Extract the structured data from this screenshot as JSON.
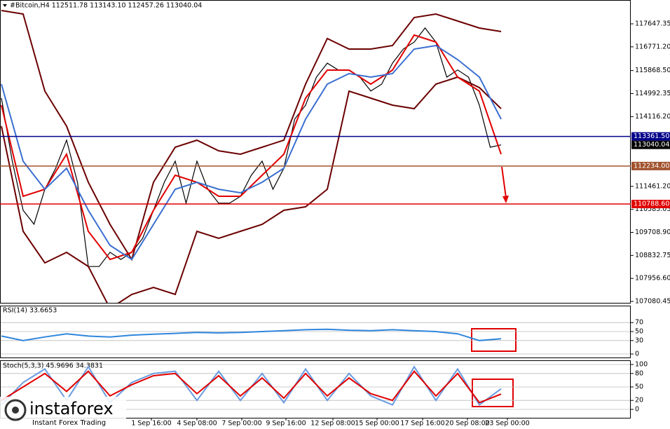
{
  "header": {
    "quote": "#Bitcoin,H4  112511.78 113143.10 112457.26 113040.04"
  },
  "watermark": {
    "brand": "instaforex",
    "tagline": "Instant Forex Trading"
  },
  "x_labels": [
    "1 Sep 16:00",
    "4 Sep 08:00",
    "7 Sep 00:00",
    "9 Sep 16:00",
    "12 Sep 08:00",
    "15 Sep 00:00",
    "17 Sep 16:00",
    "20 Sep 08:00",
    "23 Sep 00:00"
  ],
  "chart_data": [
    {
      "type": "line",
      "series": [
        {
          "color": "#000000",
          "values": [
            114820,
            112420,
            110550,
            110020,
            111350,
            112150,
            113220,
            111620,
            108410,
            108410,
            108950,
            108680,
            108950,
            109480,
            110550,
            111620,
            112420,
            110820,
            112420,
            111350,
            110820,
            110820,
            111080,
            111880,
            112420,
            111350,
            112150,
            114020,
            114550,
            115620,
            116150,
            115890,
            115890,
            115620,
            115090,
            115350,
            116150,
            116690,
            116950,
            117490,
            116950,
            115620,
            115890,
            115620,
            114550,
            112950,
            113040.04
          ]
        },
        {
          "color": "#6b0000",
          "values": [
            118154,
            118020,
            115085,
            113751,
            111616,
            110014,
            108680,
            111616,
            112950,
            113217,
            112816,
            112683,
            112950,
            113217,
            115352,
            117087,
            116686,
            116686,
            116820,
            117887,
            118020,
            117754,
            117487,
            117354
          ]
        },
        {
          "color": "#6b0000",
          "values": [
            113751,
            109748,
            108547,
            108947,
            108413,
            106812,
            107346,
            107613,
            107346,
            109748,
            109481,
            109748,
            110014,
            110548,
            110682,
            111349,
            115085,
            114818,
            114551,
            114418,
            115352,
            115619,
            115219,
            114418
          ]
        },
        {
          "color": "#e00000",
          "values": [
            114551,
            111082,
            111349,
            112683,
            109748,
            108680,
            108947,
            110548,
            111883,
            111616,
            111082,
            111082,
            111883,
            112683,
            114818,
            115886,
            115886,
            115352,
            115886,
            117220,
            116953,
            115619,
            115085,
            112683
          ]
        },
        {
          "color": "#3a6fd0",
          "values": [
            115352,
            112416,
            111349,
            112149,
            110548,
            109214,
            108680,
            110014,
            111349,
            111616,
            111349,
            111216,
            111616,
            112149,
            114017,
            115352,
            115753,
            115619,
            115753,
            116686,
            116820,
            116286,
            115619,
            114017
          ]
        }
      ],
      "ylim": [
        118501,
        107027
      ],
      "yticks": [
        117647.35,
        {
          "value": 116771.2,
          "label": "116771.20"
        },
        {
          "value": 115868.5,
          "label": "115868.50"
        },
        114992.35,
        {
          "value": 114116.2,
          "label": "114116.20"
        },
        {
          "value": 111461.2,
          "label": "111461.20"
        },
        110585.05,
        {
          "value": 109708.9,
          "label": "109708.90"
        },
        108832.75,
        {
          "value": 107956.6,
          "label": "107956.60"
        },
        107080.45
      ],
      "levels": [
        {
          "value": 113361.5,
          "label": "113361.50",
          "color": "#00008b"
        },
        {
          "value": 112234,
          "label": "112234.00",
          "color": "#a0522d"
        },
        {
          "value": 110788.6,
          "label": "110788.60",
          "color": "#e00000"
        }
      ],
      "last_price": 113040.04
    },
    {
      "type": "line",
      "label": "RSI(14) 33.6653",
      "series": [
        {
          "color": "#2f86dd",
          "values": [
            40,
            30,
            38,
            45,
            40,
            38,
            42,
            44,
            46,
            48,
            47,
            48,
            50,
            52,
            54,
            55,
            53,
            52,
            54,
            52,
            50,
            45,
            30,
            34
          ]
        }
      ],
      "ylim": [
        0,
        100
      ],
      "yticks": [
        0,
        30,
        50,
        70
      ]
    },
    {
      "type": "line",
      "label": "Stoch(5,3,3) 45.9696 34.3831",
      "series": [
        {
          "color": "#6a9be0",
          "values": [
            10,
            60,
            90,
            20,
            95,
            15,
            60,
            80,
            85,
            20,
            85,
            20,
            80,
            15,
            90,
            20,
            80,
            30,
            10,
            95,
            20,
            90,
            10,
            46
          ]
        },
        {
          "color": "#e00000",
          "values": [
            20,
            50,
            80,
            40,
            85,
            30,
            55,
            75,
            80,
            35,
            75,
            30,
            70,
            25,
            80,
            30,
            70,
            35,
            20,
            85,
            30,
            80,
            15,
            34
          ]
        }
      ],
      "ylim": [
        0,
        100
      ],
      "yticks": [
        0,
        20,
        50,
        80,
        100
      ]
    }
  ]
}
